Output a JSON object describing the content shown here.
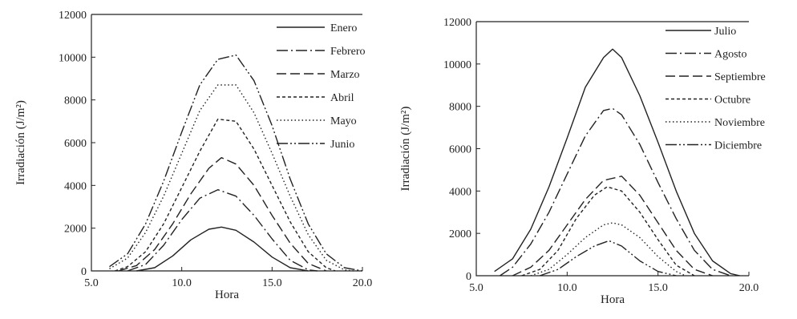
{
  "chart_data": [
    {
      "type": "line",
      "xlabel": "Hora",
      "ylabel": "Irradiación (J/m²)",
      "xlim": [
        5,
        20
      ],
      "ylim": [
        0,
        12000
      ],
      "xticks": [
        "5.0",
        "10.0",
        "15.0",
        "20.0"
      ],
      "xtick_values": [
        5,
        10,
        15,
        20
      ],
      "yticks": [
        "0",
        "2000",
        "4000",
        "6000",
        "8000",
        "10000",
        "12000"
      ],
      "ytick_values": [
        0,
        2000,
        4000,
        6000,
        8000,
        10000,
        12000
      ],
      "legend_position": "top-right",
      "series": [
        {
          "name": "Enero",
          "dash": "",
          "x": [
            7.5,
            8.5,
            9.5,
            10.5,
            11.5,
            12.2,
            13,
            14,
            15,
            16,
            17
          ],
          "y": [
            0,
            150,
            700,
            1450,
            1950,
            2050,
            1900,
            1350,
            650,
            150,
            0
          ]
        },
        {
          "name": "Febrero",
          "dash": "14,4,2,4",
          "x": [
            7,
            8,
            9,
            10,
            11,
            12,
            13,
            14,
            15,
            16,
            17,
            17.5
          ],
          "y": [
            0,
            300,
            1200,
            2400,
            3400,
            3800,
            3500,
            2600,
            1500,
            500,
            50,
            0
          ]
        },
        {
          "name": "Marzo",
          "dash": "12,5",
          "x": [
            6.5,
            7.5,
            8.5,
            9.5,
            10.5,
            11.5,
            12.2,
            13,
            14,
            15,
            16,
            17,
            18
          ],
          "y": [
            0,
            250,
            1000,
            2200,
            3600,
            4800,
            5300,
            5000,
            4000,
            2600,
            1300,
            350,
            0
          ]
        },
        {
          "name": "Abril",
          "dash": "4,3",
          "x": [
            6.3,
            7,
            8,
            9,
            10,
            11,
            12,
            13,
            14,
            15,
            16,
            17,
            18,
            18.5
          ],
          "y": [
            0,
            200,
            900,
            2200,
            3900,
            5600,
            7100,
            7000,
            5700,
            4000,
            2300,
            900,
            150,
            0
          ]
        },
        {
          "name": "Mayo",
          "dash": "1.5,3",
          "x": [
            6,
            7,
            8,
            9,
            10,
            11,
            12,
            13,
            14,
            15,
            16,
            17,
            18,
            19,
            19.5
          ],
          "y": [
            100,
            600,
            1800,
            3500,
            5500,
            7500,
            8700,
            8700,
            7400,
            5500,
            3500,
            1700,
            500,
            50,
            0
          ]
        },
        {
          "name": "Junio",
          "dash": "14,3,2,3,2,3",
          "x": [
            6,
            7,
            8,
            9,
            10,
            11,
            12,
            13,
            14,
            15,
            16,
            17,
            18,
            19,
            20
          ],
          "y": [
            200,
            800,
            2200,
            4200,
            6500,
            8700,
            9900,
            10100,
            8900,
            6800,
            4300,
            2200,
            800,
            150,
            0
          ]
        }
      ]
    },
    {
      "type": "line",
      "xlabel": "Hora",
      "ylabel": "Irradiación (J/m²)",
      "xlim": [
        5,
        20
      ],
      "ylim": [
        0,
        12000
      ],
      "xticks": [
        "5.0",
        "10.0",
        "15.0",
        "20.0"
      ],
      "xtick_values": [
        5,
        10,
        15,
        20
      ],
      "yticks": [
        "0",
        "2000",
        "4000",
        "6000",
        "8000",
        "10000",
        "12000"
      ],
      "ytick_values": [
        0,
        2000,
        4000,
        6000,
        8000,
        10000,
        12000
      ],
      "legend_position": "top-right",
      "series": [
        {
          "name": "Julio",
          "dash": "",
          "x": [
            6,
            7,
            8,
            9,
            10,
            11,
            12,
            12.5,
            13,
            14,
            15,
            16,
            17,
            18,
            19,
            19.5
          ],
          "y": [
            200,
            800,
            2200,
            4200,
            6500,
            8900,
            10300,
            10700,
            10300,
            8500,
            6300,
            4000,
            2000,
            700,
            100,
            0
          ]
        },
        {
          "name": "Agosto",
          "dash": "14,4,2,4",
          "x": [
            6.3,
            7,
            8,
            9,
            10,
            11,
            12,
            12.5,
            13,
            14,
            15,
            16,
            17,
            18,
            19
          ],
          "y": [
            0,
            400,
            1500,
            3000,
            4800,
            6600,
            7800,
            7900,
            7600,
            6200,
            4400,
            2700,
            1200,
            300,
            0
          ]
        },
        {
          "name": "Septiembre",
          "dash": "12,5",
          "x": [
            7,
            8,
            9,
            10,
            11,
            12,
            13,
            14,
            15,
            16,
            17,
            18
          ],
          "y": [
            0,
            400,
            1200,
            2400,
            3600,
            4500,
            4700,
            3800,
            2500,
            1200,
            300,
            0
          ]
        },
        {
          "name": "Octubre",
          "dash": "4,3",
          "x": [
            7.5,
            8.5,
            9.5,
            10.5,
            11.5,
            12.2,
            13,
            14,
            15,
            16,
            17
          ],
          "y": [
            0,
            300,
            1200,
            2700,
            3800,
            4200,
            4000,
            3000,
            1700,
            500,
            0
          ]
        },
        {
          "name": "Noviembre",
          "dash": "1.5,3",
          "x": [
            8,
            9,
            10,
            11,
            12,
            12.5,
            13,
            14,
            15,
            16,
            16.5
          ],
          "y": [
            0,
            300,
            1000,
            1800,
            2400,
            2500,
            2400,
            1800,
            900,
            200,
            0
          ]
        },
        {
          "name": "Diciembre",
          "dash": "14,3,2,3,2,3",
          "x": [
            8.5,
            9.5,
            10.5,
            11.5,
            12.3,
            13,
            14,
            15,
            16
          ],
          "y": [
            0,
            300,
            900,
            1400,
            1650,
            1400,
            700,
            200,
            0
          ]
        }
      ]
    }
  ]
}
